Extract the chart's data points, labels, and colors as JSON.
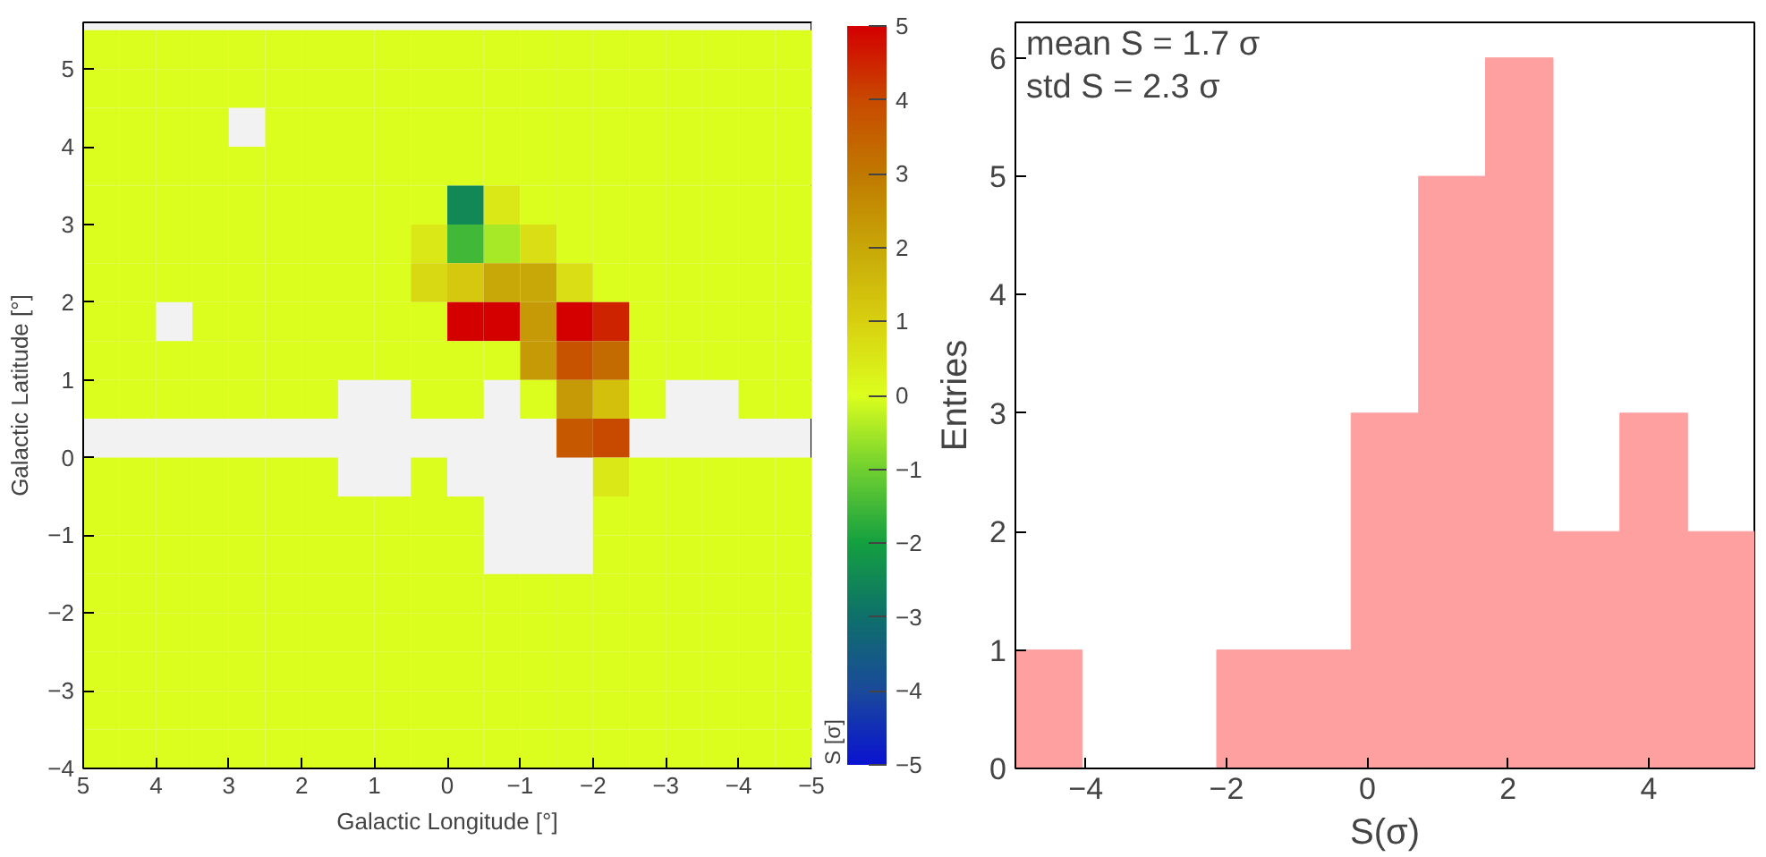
{
  "chart_data": [
    {
      "type": "heatmap",
      "xlabel": "Galactic Longitude [°]",
      "ylabel": "Galactic Latitude [°]",
      "clabel": "S [σ]",
      "x": [
        4.75,
        4.25,
        3.75,
        3.25,
        2.75,
        2.25,
        1.75,
        1.25,
        0.75,
        0.25,
        -0.25,
        -0.75,
        -1.25,
        -1.75,
        -2.25,
        -2.75,
        -3.25,
        -3.75,
        -4.25,
        -4.75
      ],
      "y": [
        5.25,
        4.75,
        4.25,
        3.75,
        3.25,
        2.75,
        2.25,
        1.75,
        1.25,
        0.75,
        0.25,
        -0.25,
        -0.75,
        -1.25,
        -1.75,
        -2.25,
        -2.75,
        -3.25,
        -3.75
      ],
      "cells": [
        [
          0,
          0,
          0,
          0,
          0,
          0,
          0,
          0,
          0,
          0,
          0,
          0,
          0,
          0,
          0,
          0,
          0,
          0,
          0,
          0
        ],
        [
          0,
          0,
          0,
          0,
          0,
          0,
          0,
          0,
          0,
          0,
          0,
          0,
          0,
          0,
          0,
          0,
          0,
          0,
          0,
          0
        ],
        [
          0,
          0,
          0,
          0,
          null,
          0,
          0,
          0,
          0,
          0,
          0,
          0,
          0,
          0,
          0,
          0,
          0,
          0,
          0,
          0
        ],
        [
          0,
          0,
          0,
          0,
          0,
          0,
          0,
          0,
          0,
          0,
          0,
          0,
          0,
          0,
          0,
          0,
          0,
          0,
          0,
          0
        ],
        [
          0,
          0,
          0,
          0,
          0,
          0,
          0,
          0,
          0,
          0,
          -2.5,
          0.5,
          0,
          0,
          0,
          0,
          0,
          0,
          0,
          0
        ],
        [
          0,
          0,
          0,
          0,
          0,
          0,
          0,
          0,
          0,
          0.5,
          -1.5,
          -0.5,
          0.7,
          0,
          0,
          0,
          0,
          0,
          0,
          0
        ],
        [
          0,
          0,
          0,
          0,
          0,
          0,
          0,
          0,
          0,
          0.8,
          1.2,
          2,
          2,
          0.7,
          0,
          0,
          0,
          0,
          0,
          0
        ],
        [
          0,
          0,
          null,
          0,
          0,
          0,
          0,
          0,
          0,
          0,
          5,
          5,
          2.3,
          5,
          4.5,
          0,
          0,
          0,
          0,
          0
        ],
        [
          0,
          0,
          0,
          0,
          0,
          0,
          0,
          0,
          0,
          0,
          0,
          0,
          2.3,
          3.8,
          3.3,
          0,
          0,
          0,
          0,
          0
        ],
        [
          0,
          0,
          0,
          0,
          0,
          0,
          0,
          null,
          null,
          0,
          0,
          null,
          0,
          2.3,
          1.4,
          0,
          null,
          null,
          0,
          0
        ],
        [
          null,
          null,
          null,
          null,
          null,
          null,
          null,
          null,
          null,
          null,
          null,
          null,
          null,
          3.7,
          4,
          null,
          null,
          null,
          null,
          null
        ],
        [
          0,
          0,
          0,
          0,
          0,
          0,
          0,
          null,
          null,
          0,
          null,
          null,
          null,
          null,
          0.5,
          0,
          0,
          0,
          0,
          0
        ],
        [
          0,
          0,
          0,
          0,
          0,
          0,
          0,
          0,
          0,
          0,
          0,
          null,
          null,
          null,
          0,
          0,
          0,
          0,
          0,
          0
        ],
        [
          0,
          0,
          0,
          0,
          0,
          0,
          0,
          0,
          0,
          0,
          0,
          null,
          null,
          null,
          0,
          0,
          0,
          0,
          0,
          0
        ],
        [
          0,
          0,
          0,
          0,
          0,
          0,
          0,
          0,
          0,
          0,
          0,
          0,
          0,
          0,
          0,
          0,
          0,
          0,
          0,
          0
        ],
        [
          0,
          0,
          0,
          0,
          0,
          0,
          0,
          0,
          0,
          0,
          0,
          0,
          0,
          0,
          0,
          0,
          0,
          0,
          0,
          0
        ],
        [
          0,
          0,
          0,
          0,
          0,
          0,
          0,
          0,
          0,
          0,
          0,
          0,
          0,
          0,
          0,
          0,
          0,
          0,
          0,
          0
        ],
        [
          0,
          0,
          0,
          0,
          0,
          0,
          0,
          0,
          0,
          0,
          0,
          0,
          0,
          0,
          0,
          0,
          0,
          0,
          0,
          0
        ],
        [
          0,
          0,
          0,
          0,
          0,
          0,
          0,
          0,
          0,
          0,
          0,
          0,
          0,
          0,
          0,
          0,
          0,
          0,
          0,
          0
        ]
      ],
      "xlim": [
        5,
        -5
      ],
      "ylim": [
        -4,
        5.6
      ],
      "xticks": [
        5,
        4,
        3,
        2,
        1,
        0,
        -1,
        -2,
        -3,
        -4,
        -5
      ],
      "yticks": [
        -4,
        -3,
        -2,
        -1,
        0,
        1,
        2,
        3,
        4,
        5
      ],
      "clim": [
        -5,
        5
      ],
      "cticks": [
        -5,
        -4,
        -3,
        -2,
        -1,
        0,
        1,
        2,
        3,
        4,
        5
      ]
    },
    {
      "type": "histogram",
      "xlabel": "S(σ)",
      "ylabel": "Entries",
      "color": "#ffa0a0",
      "bins": [
        -5,
        -4.05,
        -3.09,
        -2.14,
        -1.18,
        -0.23,
        0.73,
        1.68,
        2.64,
        3.59,
        4.55,
        5.5
      ],
      "values": [
        1,
        0,
        0,
        1,
        1,
        3,
        5,
        6,
        2,
        3,
        2
      ],
      "xlim": [
        -5,
        5.5
      ],
      "ylim": [
        0,
        6.3
      ],
      "xticks": [
        -4,
        -2,
        0,
        2,
        4
      ],
      "yticks": [
        0,
        1,
        2,
        3,
        4,
        5,
        6
      ],
      "annotations": [
        "mean S = 1.7 σ",
        "std S = 2.3 σ"
      ],
      "grid": false
    }
  ]
}
